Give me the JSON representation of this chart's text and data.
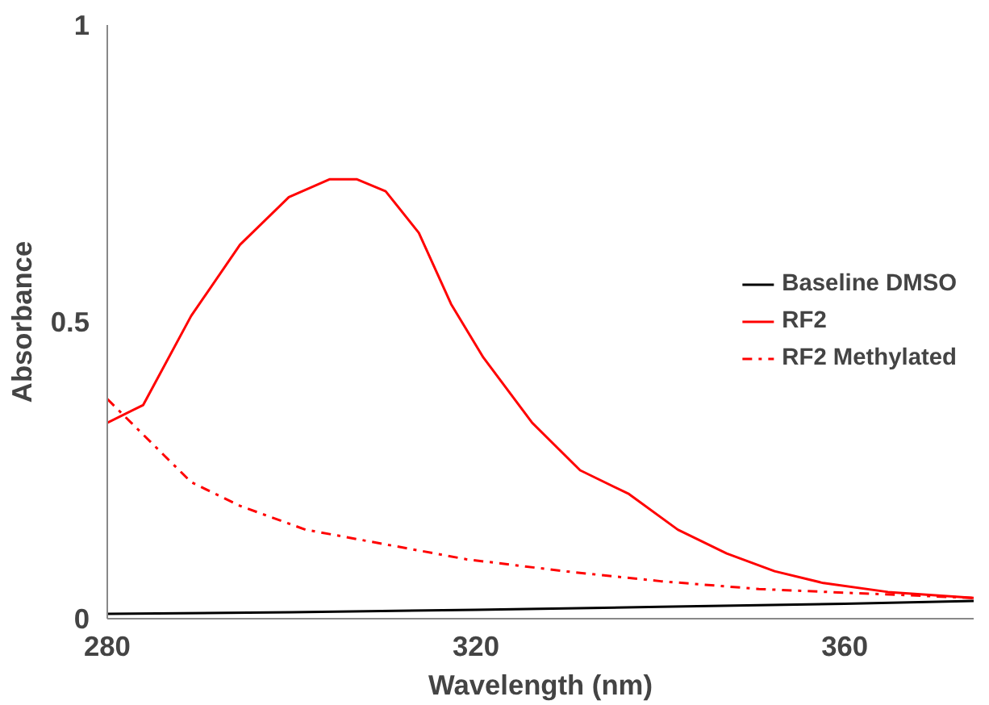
{
  "chart_data": {
    "type": "line",
    "xlabel": "Wavelength (nm)",
    "ylabel": "Absorbance",
    "xlim": [
      280,
      374
    ],
    "xticks": [
      280,
      320,
      360
    ],
    "ylim": [
      0,
      1
    ],
    "yticks": [
      0,
      0.5,
      1
    ],
    "grid": false,
    "legend": "right",
    "marker": "none",
    "series": [
      {
        "name": "Baseline DMSO",
        "color": "#000000",
        "line_style": "solid",
        "x": [
          280,
          300,
          320,
          340,
          360,
          374
        ],
        "values": [
          0.008,
          0.011,
          0.015,
          0.02,
          0.025,
          0.03
        ]
      },
      {
        "name": "RF2",
        "color": "#ff0000",
        "line_style": "solid",
        "x": [
          280,
          283.9,
          289.1,
          294.4,
          299.7,
          304.1,
          307.1,
          310.2,
          313.8,
          317.3,
          320.8,
          326.1,
          331.3,
          336.6,
          341.9,
          347.2,
          352.4,
          357.7,
          364.7,
          374
        ],
        "values": [
          0.33,
          0.36,
          0.51,
          0.63,
          0.71,
          0.74,
          0.74,
          0.72,
          0.65,
          0.53,
          0.44,
          0.33,
          0.25,
          0.21,
          0.15,
          0.11,
          0.08,
          0.06,
          0.045,
          0.035
        ]
      },
      {
        "name": "RF2 Methylated",
        "color": "#ff0000",
        "line_style": "dashdot",
        "x": [
          280,
          283.9,
          289.1,
          294.4,
          301.5,
          308.5,
          319,
          329.6,
          340.1,
          350.7,
          361.2,
          374
        ],
        "values": [
          0.37,
          0.31,
          0.23,
          0.19,
          0.15,
          0.13,
          0.1,
          0.08,
          0.063,
          0.05,
          0.043,
          0.035
        ]
      }
    ]
  }
}
